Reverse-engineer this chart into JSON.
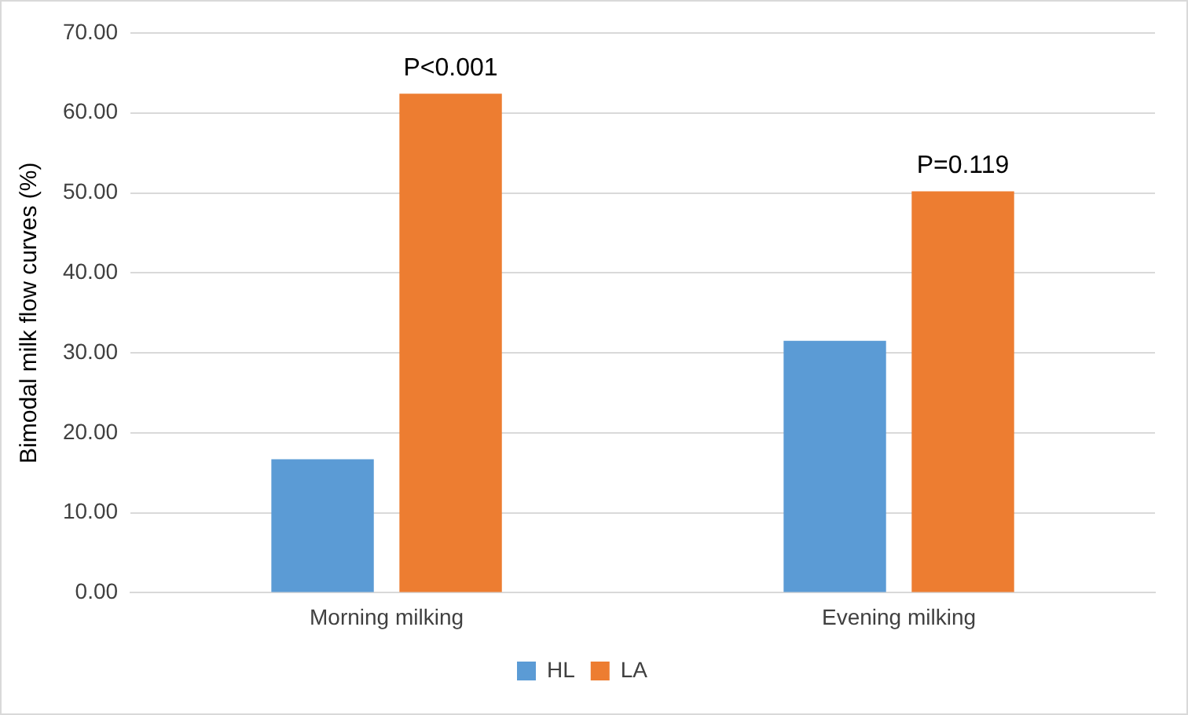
{
  "chart_data": {
    "type": "bar",
    "ylabel": "Bimodal milk flow curves (%)",
    "categories": [
      "Morning milking",
      "Evening milking"
    ],
    "series": [
      {
        "name": "HL",
        "color": "#5b9bd5",
        "values": [
          16.7,
          31.5
        ]
      },
      {
        "name": "LA",
        "color": "#ed7d31",
        "values": [
          62.4,
          50.2
        ]
      }
    ],
    "ylim": [
      0,
      70
    ],
    "yticks": [
      {
        "value": 0,
        "label": "0.00"
      },
      {
        "value": 10,
        "label": "10.00"
      },
      {
        "value": 20,
        "label": "20.00"
      },
      {
        "value": 30,
        "label": "30.00"
      },
      {
        "value": 40,
        "label": "40.00"
      },
      {
        "value": 50,
        "label": "50.00"
      },
      {
        "value": 60,
        "label": "60.00"
      },
      {
        "value": 70,
        "label": "70.00"
      }
    ],
    "grid": "y",
    "legend": "bottom",
    "annotations": [
      "P<0.001",
      "P=0.119"
    ]
  }
}
